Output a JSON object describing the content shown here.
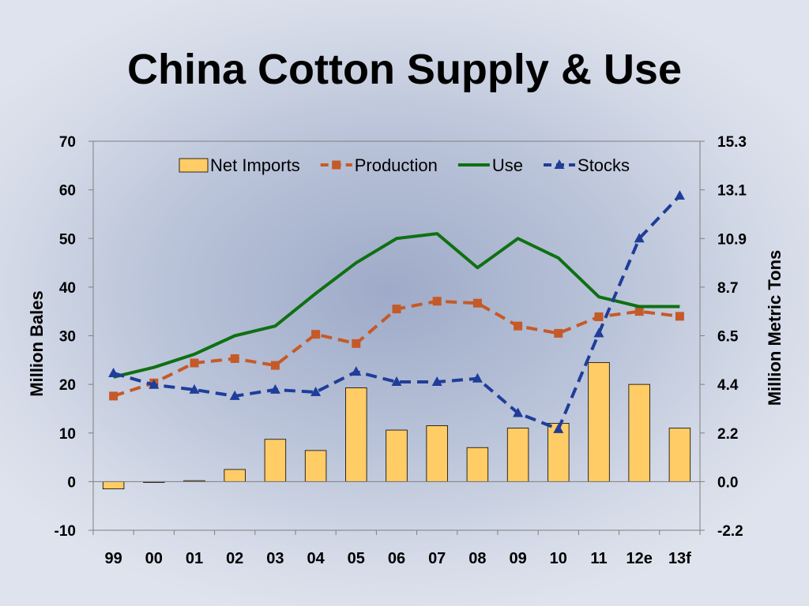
{
  "chart_data": {
    "type": "bar",
    "title": "China Cotton Supply & Use",
    "xlabel": "",
    "ylabel": "Million Bales",
    "y2label": "Million Metric Tons",
    "ylim": [
      -10,
      70
    ],
    "yticks": [
      -10,
      0,
      10,
      20,
      30,
      40,
      50,
      60,
      70
    ],
    "y2ticks": [
      "-2.2",
      "0.0",
      "2.2",
      "4.4",
      "6.5",
      "8.7",
      "10.9",
      "13.1",
      "15.3"
    ],
    "categories": [
      "99",
      "00",
      "01",
      "02",
      "03",
      "04",
      "05",
      "06",
      "07",
      "08",
      "09",
      "10",
      "11",
      "12e",
      "13f"
    ],
    "legend_position": "top",
    "series": [
      {
        "name": "Net Imports",
        "kind": "bar",
        "color": "#ffcc66",
        "values": [
          -1.5,
          -0.1,
          0.2,
          2.5,
          8.7,
          6.4,
          19.3,
          10.6,
          11.5,
          7.0,
          11.0,
          12.0,
          24.5,
          20.0,
          11.0
        ]
      },
      {
        "name": "Production",
        "kind": "line",
        "style": "dashed",
        "marker": "square",
        "color": "#c55a28",
        "values": [
          17.6,
          20.3,
          24.4,
          25.3,
          23.9,
          30.3,
          28.4,
          35.5,
          37.1,
          36.7,
          32.0,
          30.5,
          33.9,
          35.0,
          34.0
        ]
      },
      {
        "name": "Use",
        "kind": "line",
        "style": "solid",
        "marker": "none",
        "color": "#0f7012",
        "values": [
          21.5,
          23.5,
          26.2,
          30.0,
          32.0,
          38.7,
          45.0,
          50.0,
          51.0,
          44.0,
          50.0,
          46.0,
          38.0,
          36.0,
          36.0
        ]
      },
      {
        "name": "Stocks",
        "kind": "line",
        "style": "dashed",
        "marker": "triangle",
        "color": "#1f3d99",
        "values": [
          22.3,
          19.9,
          18.9,
          17.6,
          18.9,
          18.4,
          22.6,
          20.5,
          20.5,
          21.2,
          14.1,
          10.8,
          30.5,
          50.0,
          58.8
        ]
      }
    ]
  }
}
